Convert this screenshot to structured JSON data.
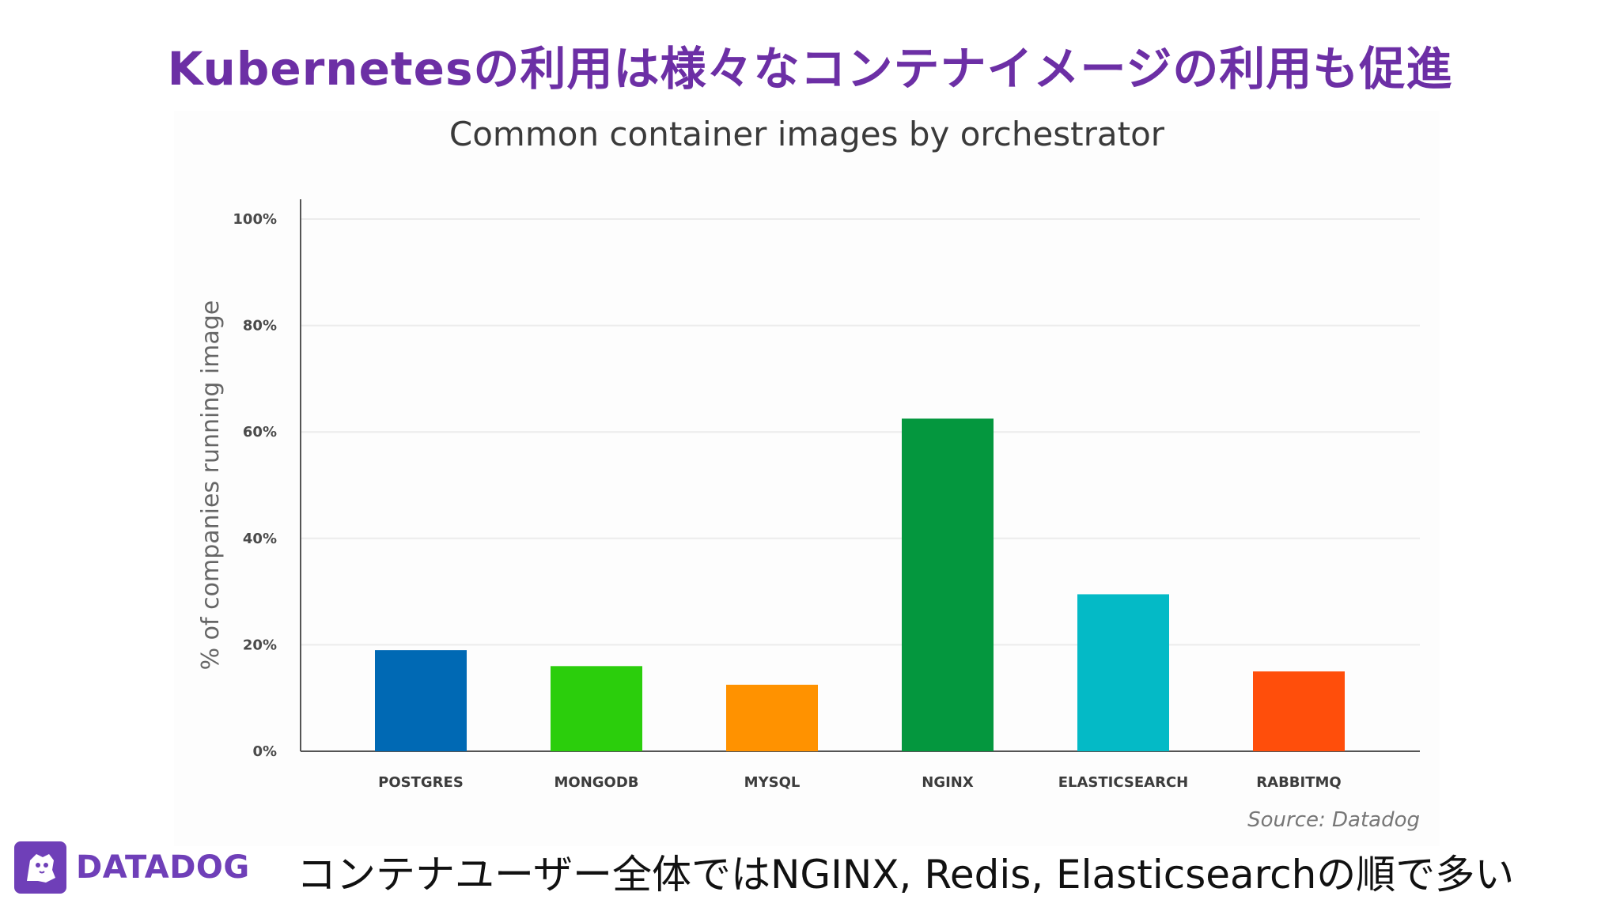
{
  "slide": {
    "title": "Kubernetesの利用は様々なコンテナイメージの利用も促進",
    "caption": "コンテナユーザー全体ではNGINX, Redis, Elasticsearchの順で多い"
  },
  "logo": {
    "text": "DATADOG",
    "icon": "datadog-dog-icon",
    "color": "#6f3fb8"
  },
  "colors": {
    "title": "#6c2fa5"
  },
  "chart_data": {
    "type": "bar",
    "title": "Common container images by orchestrator",
    "ylabel": "% of companies running image",
    "xlabel": "",
    "categories": [
      "POSTGRES",
      "MONGODB",
      "MYSQL",
      "NGINX",
      "ELASTICSEARCH",
      "RABBITMQ"
    ],
    "values": [
      19,
      16,
      12.5,
      62.5,
      29.5,
      15
    ],
    "colors": [
      "#0069b4",
      "#2bce0c",
      "#ff9200",
      "#04973e",
      "#04bac6",
      "#ff4e0b"
    ],
    "ylim": [
      0,
      100
    ],
    "yticks": [
      0,
      20,
      40,
      60,
      80,
      100
    ],
    "ytick_labels": [
      "0%",
      "20%",
      "40%",
      "60%",
      "80%",
      "100%"
    ],
    "grid": true,
    "source": "Source: Datadog"
  }
}
